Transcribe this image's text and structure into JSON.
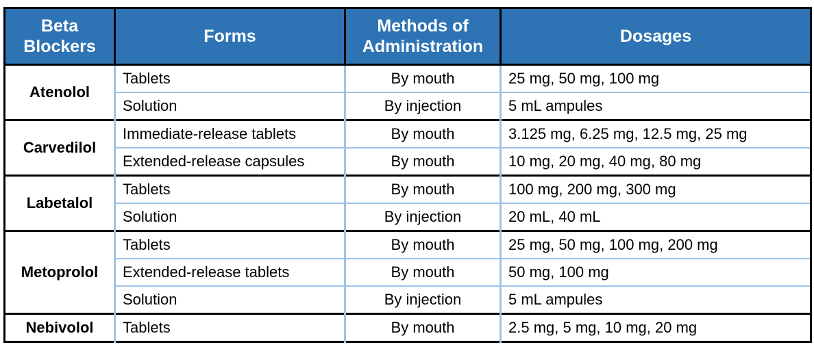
{
  "header": [
    "Beta Blockers",
    "Forms",
    "Methods of Administration",
    "Dosages"
  ],
  "groups": [
    {
      "name": "Atenolol",
      "rows": [
        [
          "Tablets",
          "By mouth",
          "25 mg, 50 mg, 100 mg"
        ],
        [
          "Solution",
          "By injection",
          "5 mL ampules"
        ]
      ]
    },
    {
      "name": "Carvedilol",
      "rows": [
        [
          "Immediate-release tablets",
          "By mouth",
          "3.125 mg, 6.25 mg, 12.5 mg, 25 mg"
        ],
        [
          "Extended-release capsules",
          "By mouth",
          "10 mg, 20 mg, 40 mg, 80 mg"
        ]
      ]
    },
    {
      "name": "Labetalol",
      "rows": [
        [
          "Tablets",
          "By mouth",
          "100 mg, 200 mg, 300 mg"
        ],
        [
          "Solution",
          "By injection",
          "20 mL, 40 mL"
        ]
      ]
    },
    {
      "name": "Metoprolol",
      "rows": [
        [
          "Tablets",
          "By mouth",
          "25 mg, 50 mg, 100 mg, 200 mg"
        ],
        [
          "Extended-release tablets",
          "By mouth",
          "50 mg, 100 mg"
        ],
        [
          "Solution",
          "By injection",
          "5 mL ampules"
        ]
      ]
    },
    {
      "name": "Nebivolol",
      "rows": [
        [
          "Tablets",
          "By mouth",
          "2.5 mg, 5 mg, 10 mg, 20 mg"
        ]
      ]
    }
  ]
}
